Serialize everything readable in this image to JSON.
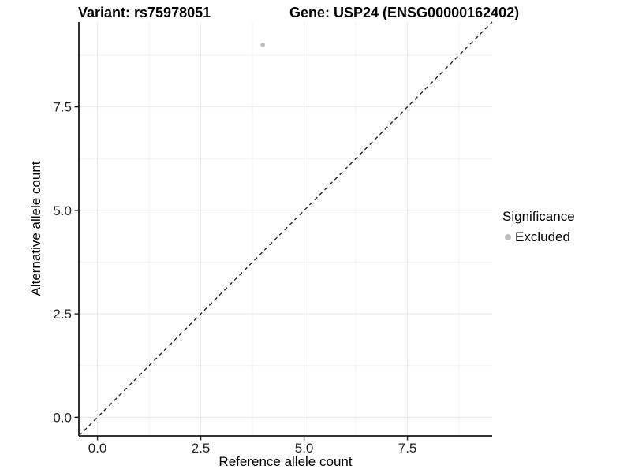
{
  "chart_data": {
    "type": "scatter",
    "titles": {
      "variant": "Variant: rs75978051",
      "gene": "Gene: USP24 (ENSG00000162402)"
    },
    "xlabel": "Reference allele count",
    "ylabel": "Alternative allele count",
    "xlim": [
      -0.45,
      9.55
    ],
    "ylim": [
      -0.45,
      9.55
    ],
    "x_ticks": {
      "values": [
        0,
        2.5,
        5,
        7.5
      ],
      "labels": [
        "0.0",
        "2.5",
        "5.0",
        "7.5"
      ]
    },
    "y_ticks": {
      "values": [
        0,
        2.5,
        5,
        7.5
      ],
      "labels": [
        "0.0",
        "2.5",
        "5.0",
        "7.5"
      ]
    },
    "minor_ticks": [
      1.25,
      3.75,
      6.25,
      8.75
    ],
    "grid": true,
    "points": [
      {
        "x": 4,
        "y": 9,
        "series": "Excluded"
      }
    ],
    "reference_line": {
      "slope": 1,
      "intercept": 0,
      "style": "dashed",
      "color": "#1a1a1a"
    },
    "legend": {
      "title": "Significance",
      "position": "right",
      "items": [
        {
          "label": "Excluded",
          "color": "#bebebe"
        }
      ]
    },
    "colors": {
      "point": "#bebebe",
      "grid_major": "#e8e8e8",
      "grid_minor": "#f2f2f2",
      "axis": "#1a1a1a",
      "tick_text": "#262626",
      "background": "#ffffff"
    }
  }
}
